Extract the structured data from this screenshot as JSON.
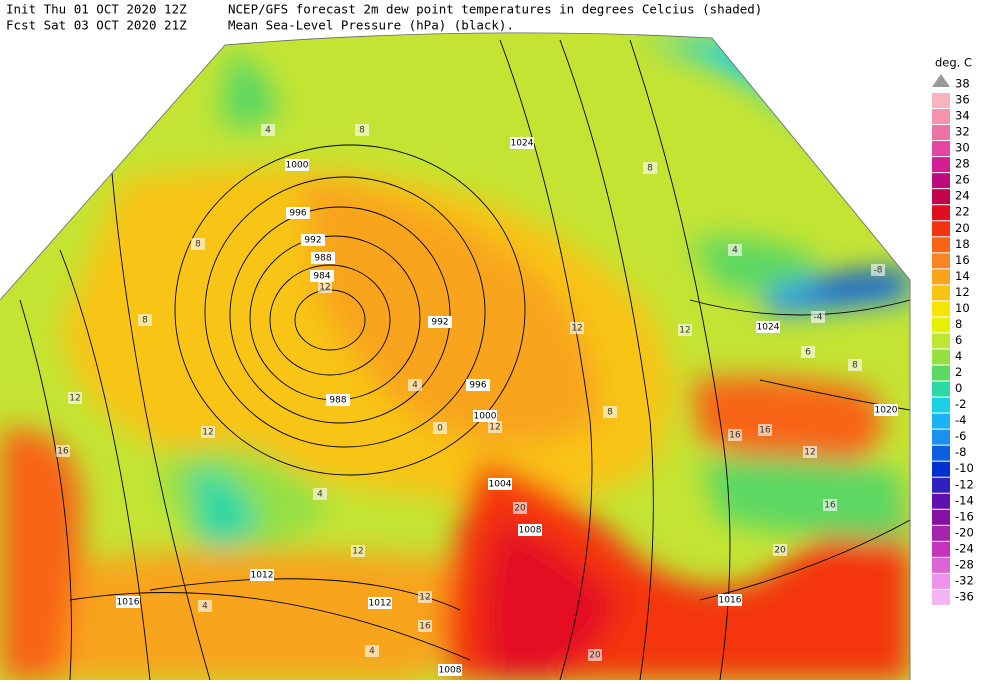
{
  "header": {
    "init": "Init  Thu 01 OCT 2020 12Z",
    "fcst": "Fcst Sat 03 OCT 2020 21Z",
    "title": "NCEP/GFS forecast 2m dew point temperatures in degrees Celcius (shaded)",
    "subtitle": "Mean Sea-Level Pressure (hPa) (black)."
  },
  "colorbar": {
    "unit": "deg. C",
    "levels": [
      38,
      36,
      34,
      32,
      30,
      28,
      26,
      24,
      22,
      20,
      18,
      16,
      14,
      12,
      10,
      8,
      6,
      4,
      2,
      0,
      -2,
      -4,
      -6,
      -8,
      -10,
      -12,
      -14,
      -16,
      -20,
      -24,
      -28,
      -32,
      -36
    ],
    "colors": [
      "#f8b4bc",
      "#f494ac",
      "#ec74a4",
      "#e444a4",
      "#d41c94",
      "#bc0c7c",
      "#c40448",
      "#e40c20",
      "#f43410",
      "#f86414",
      "#f88424",
      "#f8a41c",
      "#f8c414",
      "#f8e404",
      "#e4f004",
      "#bce834",
      "#94e044",
      "#5cd864",
      "#2cd8a4",
      "#1cd0e4",
      "#1cb0f4",
      "#1c90f0",
      "#0c60e0",
      "#0030d0",
      "#3020c0",
      "#6010b0",
      "#8410a4",
      "#a424ac",
      "#c434bc",
      "#dc64d4",
      "#ec94ec",
      "#f4b4f4"
    ]
  },
  "map": {
    "isobar_labels": [
      "1000",
      "996",
      "992",
      "988",
      "984",
      "988",
      "992",
      "996",
      "1000",
      "1004",
      "1008",
      "1012",
      "1016",
      "1012",
      "1016",
      "1020",
      "1024",
      "1024",
      "1008"
    ],
    "dewpoint_labels": [
      "4",
      "8",
      "8",
      "8",
      "12",
      "16",
      "12",
      "12",
      "4",
      "0",
      "12",
      "8",
      "12",
      "4",
      "8",
      "16",
      "16",
      "12",
      "16",
      "20",
      "20",
      "20",
      "12",
      "12",
      "16",
      "4",
      "4",
      "4",
      "12",
      "-8",
      "-4",
      "6",
      "8"
    ]
  }
}
